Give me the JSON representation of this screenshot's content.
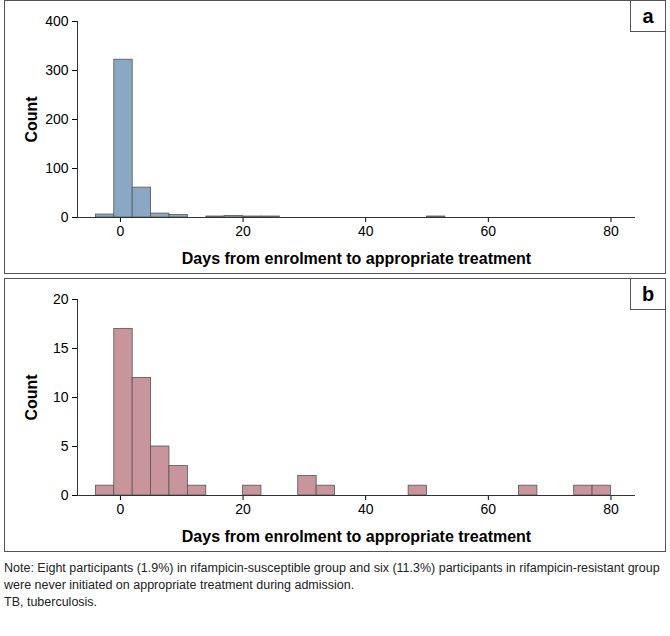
{
  "chart_data": [
    {
      "type": "histogram",
      "title": "a",
      "x_label": "Days from enrolment to appropriate treatment",
      "y_label": "Count",
      "color": "#8aa8c3",
      "bins": [
        -4,
        -1,
        2,
        5,
        8,
        11,
        14,
        17,
        20,
        23,
        26,
        29,
        32,
        35,
        38,
        41,
        44,
        47,
        50,
        53,
        56,
        59,
        62,
        65,
        68,
        71,
        74,
        77,
        80
      ],
      "counts": [
        6,
        322,
        61,
        8,
        5,
        0,
        2,
        3,
        2,
        2,
        0,
        0,
        0,
        0,
        0,
        0,
        0,
        0,
        2,
        0,
        0,
        0,
        0,
        0,
        0,
        0,
        0,
        0
      ],
      "xlim": [
        -7,
        84
      ],
      "xticks": [
        0,
        20,
        40,
        60,
        80
      ],
      "ylim": [
        0,
        400
      ],
      "yticks": [
        0,
        100,
        200,
        300,
        400
      ]
    },
    {
      "type": "histogram",
      "title": "b",
      "x_label": "Days from enrolment to appropriate treatment",
      "y_label": "Count",
      "color": "#c9959c",
      "bins": [
        -4,
        -1,
        2,
        5,
        8,
        11,
        14,
        17,
        20,
        23,
        26,
        29,
        32,
        35,
        38,
        41,
        44,
        47,
        50,
        53,
        56,
        59,
        62,
        65,
        68,
        71,
        74,
        77,
        80
      ],
      "counts": [
        1,
        17,
        12,
        5,
        3,
        1,
        0,
        0,
        1,
        0,
        0,
        2,
        1,
        0,
        0,
        0,
        0,
        1,
        0,
        0,
        0,
        0,
        0,
        1,
        0,
        0,
        1,
        1
      ],
      "xlim": [
        -7,
        84
      ],
      "xticks": [
        0,
        20,
        40,
        60,
        80
      ],
      "ylim": [
        0,
        20
      ],
      "yticks": [
        0,
        5,
        10,
        15,
        20
      ]
    }
  ],
  "note": [
    "Note: Eight participants (1.9%) in rifampicin-susceptible group and six (11.3%) participants in rifampicin-resistant group were never initiated on appropriate treatment during admission.",
    "TB, tuberculosis."
  ]
}
